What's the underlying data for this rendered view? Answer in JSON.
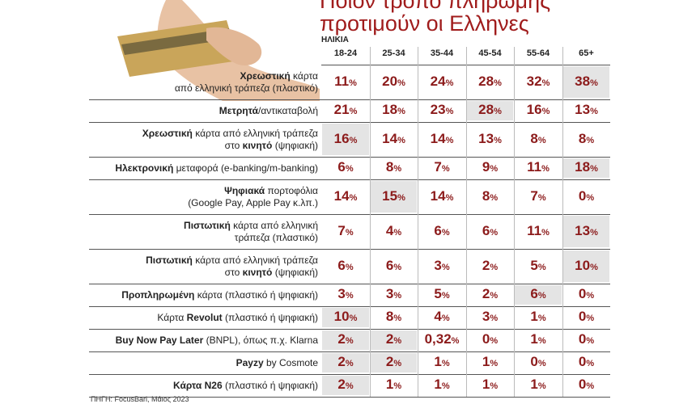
{
  "title": [
    "Ποιον τρόπο πληρωμής",
    "προτιμούν οι Ελληνες"
  ],
  "column_header": "ΗΛΙΚΙΑ",
  "columns": [
    "18-24",
    "25-34",
    "35-44",
    "45-54",
    "55-64",
    "65+"
  ],
  "rows": [
    {
      "label": [
        [
          {
            "text": "Χρεωστική",
            "bold": true
          },
          {
            "text": " κάρτα"
          }
        ],
        [
          {
            "text": "από ελληνική τράπεζα (πλαστικό)"
          }
        ]
      ],
      "values": [
        "11%",
        "20%",
        "24%",
        "28%",
        "32%",
        "38%"
      ],
      "highlight": [
        5
      ]
    },
    {
      "label": [
        [
          {
            "text": "Μετρητά",
            "bold": true
          },
          {
            "text": "/αντικαταβολή"
          }
        ]
      ],
      "values": [
        "21%",
        "18%",
        "23%",
        "28%",
        "16%",
        "13%"
      ],
      "highlight": [
        3
      ]
    },
    {
      "label": [
        [
          {
            "text": "Χρεωστική",
            "bold": true
          },
          {
            "text": " κάρτα από ελληνική τράπεζα"
          }
        ],
        [
          {
            "text": "στο "
          },
          {
            "text": "κινητό",
            "bold": true
          },
          {
            "text": " (ψηφιακή)"
          }
        ]
      ],
      "values": [
        "16%",
        "14%",
        "14%",
        "13%",
        "8%",
        "8%"
      ],
      "highlight": [
        0
      ]
    },
    {
      "label": [
        [
          {
            "text": "Ηλεκτρονική",
            "bold": true
          },
          {
            "text": " μεταφορά (e-banking/m-banking)"
          }
        ]
      ],
      "values": [
        "6%",
        "8%",
        "7%",
        "9%",
        "11%",
        "18%"
      ],
      "highlight": [
        5
      ]
    },
    {
      "label": [
        [
          {
            "text": "Ψηφιακά",
            "bold": true
          },
          {
            "text": " πορτοφόλια"
          }
        ],
        [
          {
            "text": "(Google Pay, Apple Pay κ.λπ.)"
          }
        ]
      ],
      "values": [
        "14%",
        "15%",
        "14%",
        "8%",
        "7%",
        "0%"
      ],
      "highlight": [
        1
      ]
    },
    {
      "label": [
        [
          {
            "text": "Πιστωτική",
            "bold": true
          },
          {
            "text": " κάρτα από ελληνική"
          }
        ],
        [
          {
            "text": "τράπεζα (πλαστικό)"
          }
        ]
      ],
      "values": [
        "7%",
        "4%",
        "6%",
        "6%",
        "11%",
        "13%"
      ],
      "highlight": [
        5
      ]
    },
    {
      "label": [
        [
          {
            "text": "Πιστωτική",
            "bold": true
          },
          {
            "text": " κάρτα από ελληνική τράπεζα"
          }
        ],
        [
          {
            "text": "στο "
          },
          {
            "text": "κινητό",
            "bold": true
          },
          {
            "text": " (ψηφιακή)"
          }
        ]
      ],
      "values": [
        "6%",
        "6%",
        "3%",
        "2%",
        "5%",
        "10%"
      ],
      "highlight": [
        5
      ]
    },
    {
      "label": [
        [
          {
            "text": "Προπληρωμένη",
            "bold": true
          },
          {
            "text": " κάρτα (πλαστικό ή ψηφιακή)"
          }
        ]
      ],
      "values": [
        "3%",
        "3%",
        "5%",
        "2%",
        "6%",
        "0%"
      ],
      "highlight": [
        4
      ]
    },
    {
      "label": [
        [
          {
            "text": "Κάρτα "
          },
          {
            "text": "Revolut",
            "bold": true
          },
          {
            "text": " (πλαστικό ή ψηφιακή)"
          }
        ]
      ],
      "values": [
        "10%",
        "8%",
        "4%",
        "3%",
        "1%",
        "0%"
      ],
      "highlight": [
        0
      ]
    },
    {
      "label": [
        [
          {
            "text": "Buy Now Pay Later",
            "bold": true
          },
          {
            "text": " (BNPL), όπως π.χ. Klarna"
          }
        ]
      ],
      "values": [
        "2%",
        "2%",
        "0,32%",
        "0%",
        "1%",
        "0%"
      ],
      "highlight": [
        0,
        1
      ]
    },
    {
      "label": [
        [
          {
            "text": "Payzy",
            "bold": true
          },
          {
            "text": " by Cosmote"
          }
        ]
      ],
      "values": [
        "2%",
        "2%",
        "1%",
        "1%",
        "0%",
        "0%"
      ],
      "highlight": [
        0,
        1
      ]
    },
    {
      "label": [
        [
          {
            "text": "Κάρτα N26",
            "bold": true
          },
          {
            "text": " (πλαστικό ή ψηφιακή)"
          }
        ]
      ],
      "values": [
        "2%",
        "1%",
        "1%",
        "1%",
        "1%",
        "0%"
      ],
      "highlight": [
        0
      ]
    }
  ],
  "source": "ΠΗΓΗ: FocusBari, Μάιος 2023"
}
